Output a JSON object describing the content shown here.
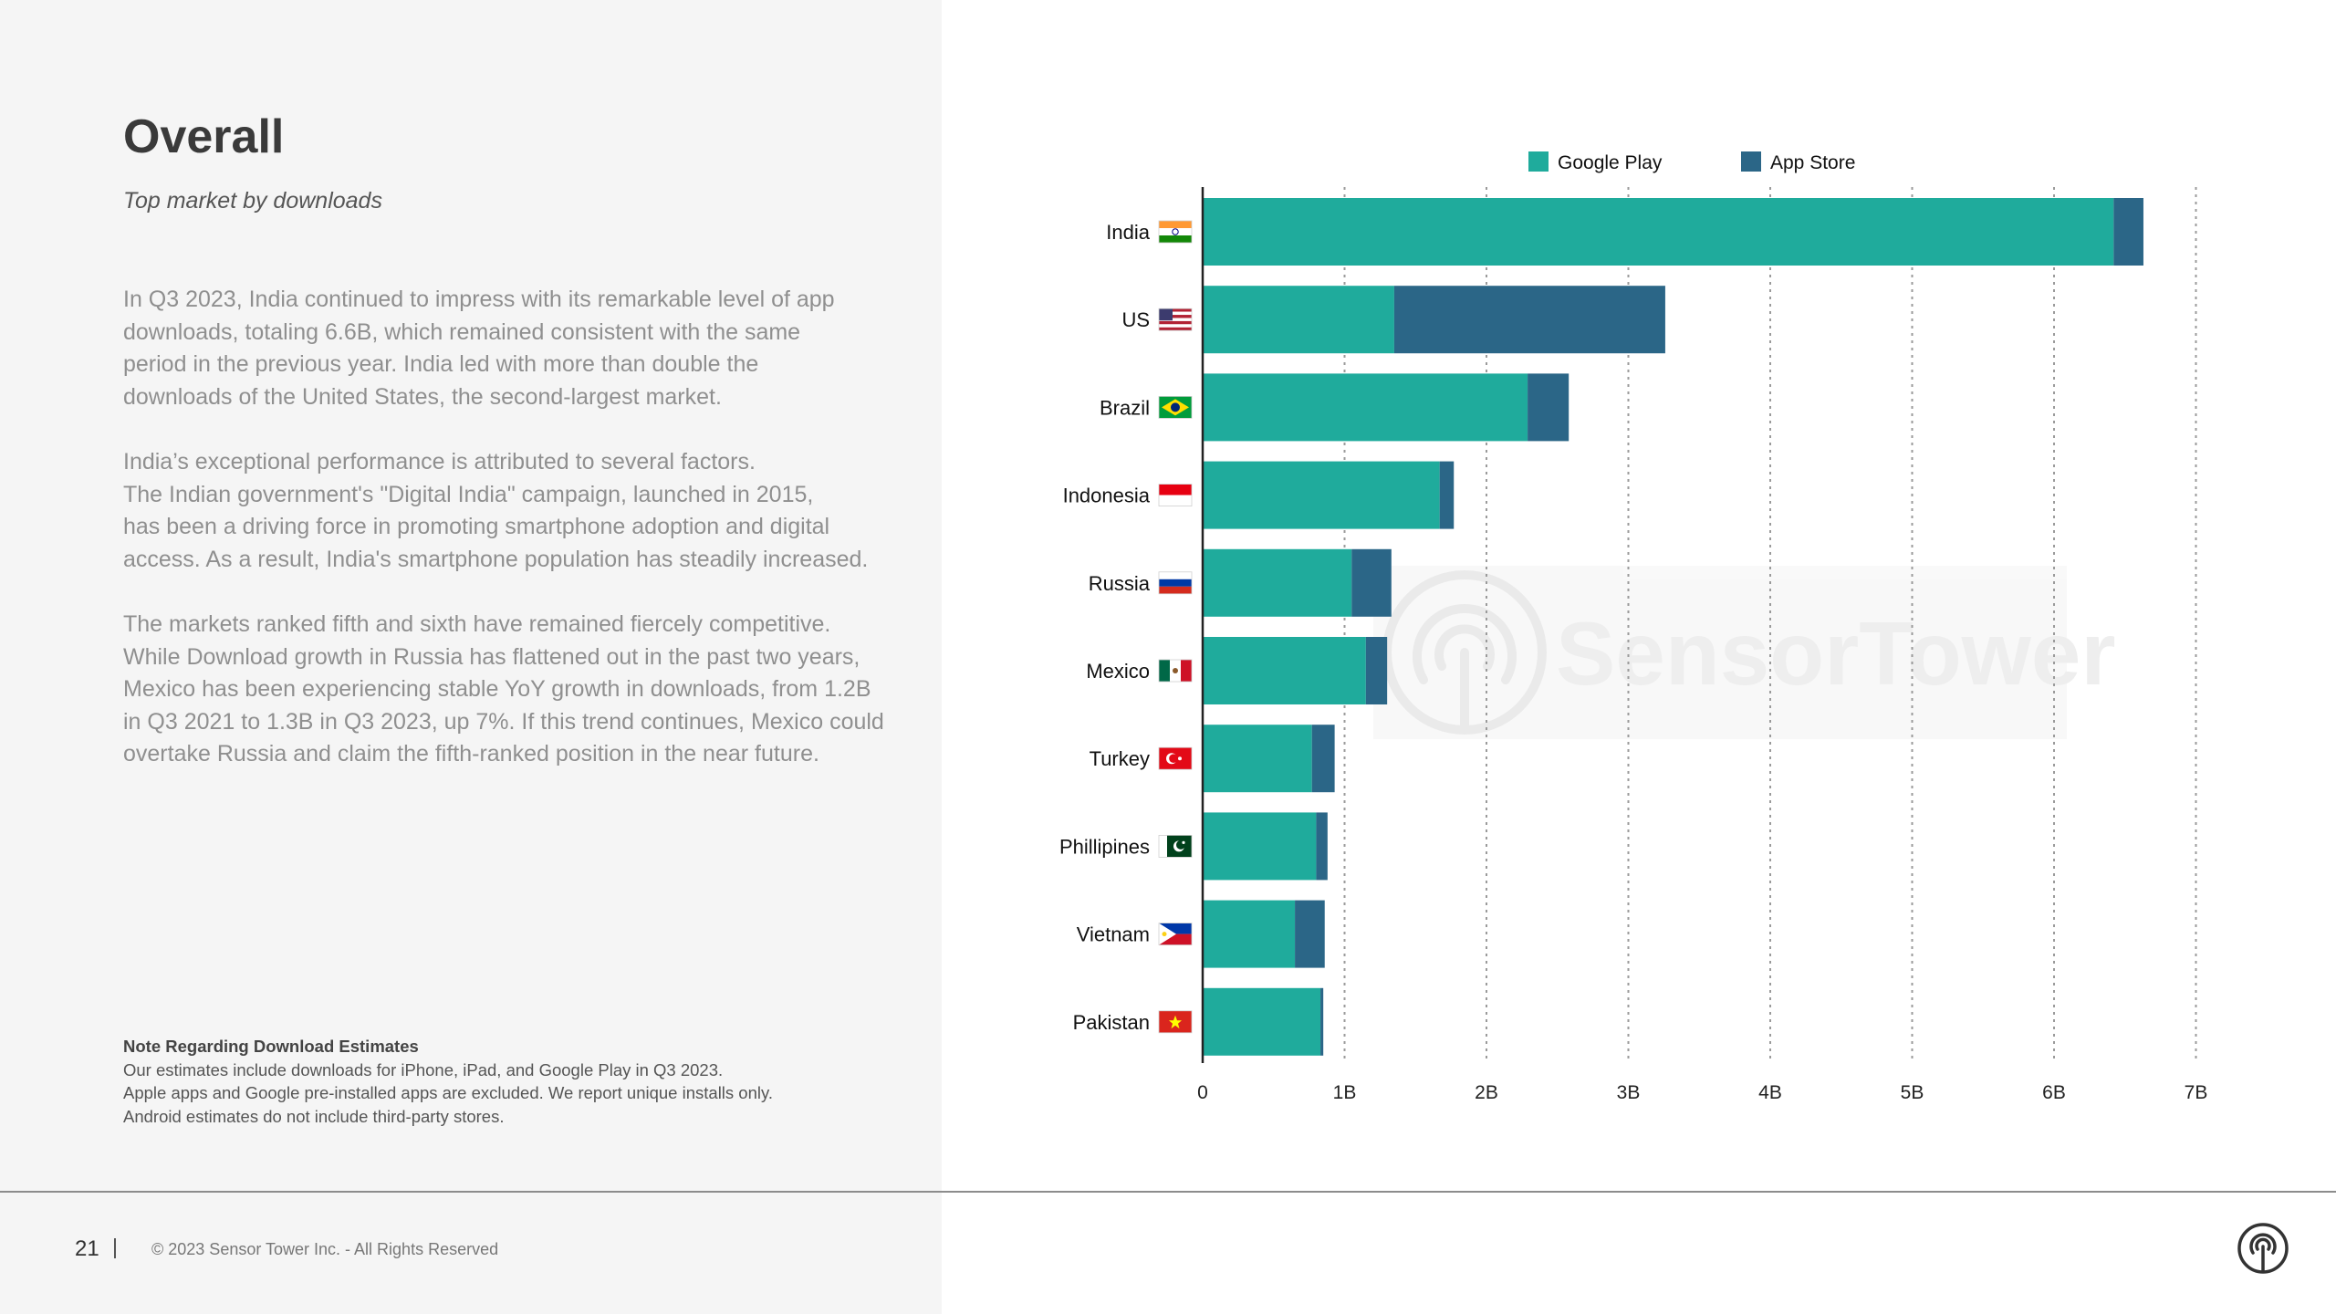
{
  "page": {
    "title": "Overall",
    "subtitle": "Top market by downloads",
    "paragraphs": [
      [
        "In Q3 2023, India continued to impress with its remarkable level of app",
        "downloads, totaling 6.6B, which remained consistent with the same",
        "period in the previous year. India led with more than double the",
        "downloads of the United States, the second-largest market."
      ],
      [
        "India’s exceptional performance is attributed to several factors.",
        "The Indian government's \"Digital India\" campaign, launched in 2015,",
        "has been a driving force in promoting smartphone adoption and digital",
        "access. As a result, India's smartphone population has steadily increased."
      ],
      [
        "The markets ranked fifth and sixth have remained fiercely competitive.",
        "While Download growth in Russia has flattened out in the past two years,",
        "Mexico has been experiencing stable YoY growth in downloads, from 1.2B",
        "in Q3 2021 to 1.3B in Q3 2023, up 7%. If this trend continues, Mexico could",
        "overtake Russia and claim the fifth-ranked position in the near future."
      ]
    ],
    "note": {
      "title": "Note Regarding Download Estimates",
      "lines": [
        "Our estimates include downloads for iPhone, iPad, and Google Play in Q3 2023.",
        "Apple apps and Google pre-installed apps are excluded. We report unique installs only.",
        "Android estimates do not include third-party stores."
      ]
    },
    "footer": {
      "page_number": "21",
      "copyright": "© 2023 Sensor Tower Inc. - All Rights Reserved"
    },
    "watermark": "SensorTower"
  },
  "colors": {
    "google_play": "#1fab9c",
    "app_store": "#2b6687"
  },
  "chart_data": {
    "type": "bar",
    "orientation": "horizontal",
    "stacked": true,
    "title": "",
    "xlabel": "",
    "ylabel": "",
    "categories": [
      "India",
      "US",
      "Brazil",
      "Indonesia",
      "Russia",
      "Mexico",
      "Turkey",
      "Phillipines",
      "Vietnam",
      "Pakistan"
    ],
    "flags": [
      "india",
      "us",
      "brazil",
      "indonesia",
      "russia",
      "mexico",
      "turkey",
      "pakistan",
      "philippines",
      "vietnam"
    ],
    "series": [
      {
        "name": "Google Play",
        "color": "#1fab9c",
        "values": [
          6.42,
          1.35,
          2.29,
          1.67,
          1.05,
          1.15,
          0.77,
          0.8,
          0.65,
          0.83
        ]
      },
      {
        "name": "App Store",
        "color": "#2b6687",
        "values": [
          0.21,
          1.91,
          0.29,
          0.1,
          0.28,
          0.15,
          0.16,
          0.08,
          0.21,
          0.02
        ]
      }
    ],
    "xlim": [
      0,
      7
    ],
    "x_ticks": [
      0,
      1,
      2,
      3,
      4,
      5,
      6,
      7
    ],
    "x_tick_labels": [
      "0",
      "1B",
      "2B",
      "3B",
      "4B",
      "5B",
      "6B",
      "7B"
    ],
    "grid": "vertical-dotted",
    "legend": "top"
  }
}
